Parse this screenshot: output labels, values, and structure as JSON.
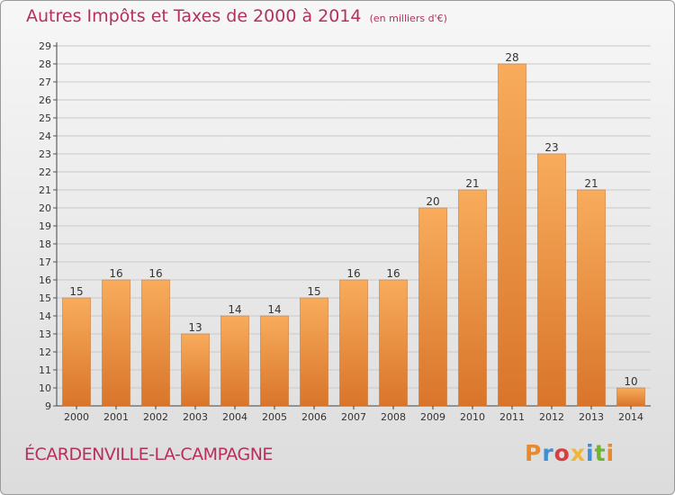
{
  "header": {
    "title": "Autres Impôts et Taxes de 2000 à 2014",
    "subtitle": "(en milliers d'€)"
  },
  "commune": "ÉCARDENVILLE-LA-CAMPAGNE",
  "brand": {
    "logo_text": "Proxiti",
    "logo_colors": [
      "#e8892c",
      "#3f8fd6",
      "#d93f3f",
      "#f0b53b",
      "#3f8fd6",
      "#6fb52f"
    ]
  },
  "chart_data": {
    "type": "bar",
    "title": "Autres Impôts et Taxes de 2000 à 2014",
    "subtitle": "(en milliers d'€)",
    "xlabel": "",
    "ylabel": "",
    "categories": [
      "2000",
      "2001",
      "2002",
      "2003",
      "2004",
      "2005",
      "2006",
      "2007",
      "2008",
      "2009",
      "2010",
      "2011",
      "2012",
      "2013",
      "2014"
    ],
    "values": [
      15,
      16,
      16,
      13,
      14,
      14,
      15,
      16,
      16,
      20,
      21,
      28,
      23,
      21,
      10
    ],
    "ylim": [
      9,
      29
    ],
    "yticks": [
      9,
      10,
      11,
      12,
      13,
      14,
      15,
      16,
      17,
      18,
      19,
      20,
      21,
      22,
      23,
      24,
      25,
      26,
      27,
      28,
      29
    ],
    "grid": true,
    "bar_color": "#f0963d",
    "bar_color_light": "#f8ac5c",
    "bar_color_dark": "#d9752a",
    "data_labels": true
  }
}
